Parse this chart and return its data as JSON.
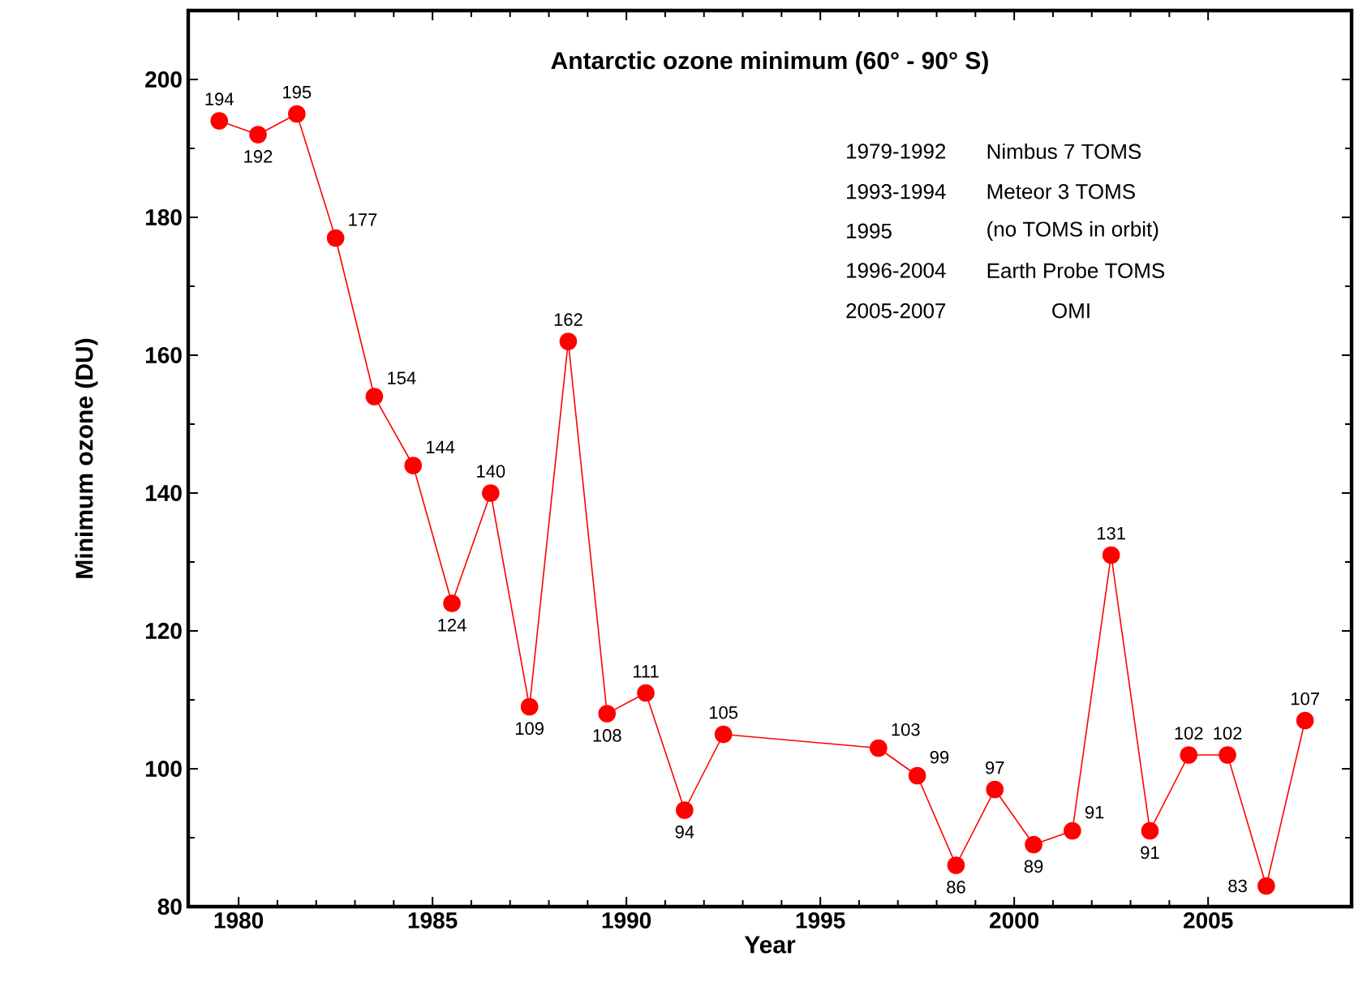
{
  "chart_data": {
    "type": "line",
    "title": "Antarctic ozone minimum (60° - 90° S)",
    "xlabel": "Year",
    "ylabel": "Minimum ozone (DU)",
    "x": [
      1979.5,
      1980.5,
      1981.5,
      1982.5,
      1983.5,
      1984.5,
      1985.5,
      1986.5,
      1987.5,
      1988.5,
      1989.5,
      1990.5,
      1991.5,
      1992.5,
      1996.5,
      1997.5,
      1998.5,
      1999.5,
      2000.5,
      2001.5,
      2002.5,
      2003.5,
      2004.5,
      2005.5,
      2006.5,
      2007.5
    ],
    "series": [
      {
        "color": "#ff0000",
        "values": [
          194,
          192,
          195,
          177,
          154,
          144,
          124,
          140,
          109,
          162,
          108,
          111,
          94,
          105,
          103,
          99,
          86,
          97,
          89,
          91,
          131,
          91,
          102,
          102,
          83,
          107
        ]
      }
    ],
    "xlim": [
      1978.7,
      2008.7
    ],
    "xticks": [
      1980,
      1985,
      1990,
      1995,
      2000,
      2005
    ],
    "ylim": [
      80,
      210
    ],
    "yticks": [
      80,
      100,
      120,
      140,
      160,
      180,
      200
    ],
    "marker": "circle",
    "line_style": "solid",
    "data_labels": true,
    "grid": false,
    "annotations": [
      "1979-1992",
      "Nimbus 7 TOMS",
      "1993-1994",
      "Meteor 3 TOMS",
      "1995",
      "(no TOMS in orbit)",
      "1996-2004",
      "Earth Probe TOMS",
      "2005-2007",
      "OMI"
    ]
  }
}
